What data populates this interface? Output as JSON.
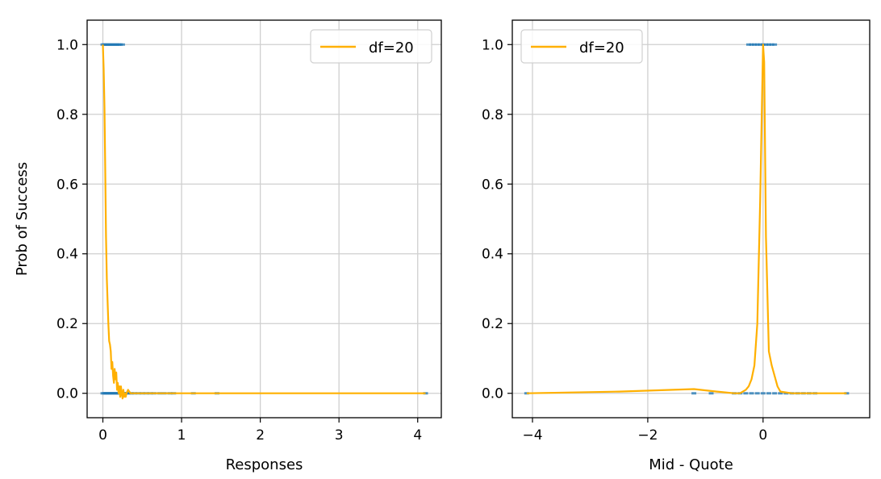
{
  "chart_data": [
    {
      "type": "line",
      "xlabel": "Responses",
      "ylabel": "Prob of Success",
      "xlim": [
        -0.2,
        4.3
      ],
      "ylim": [
        -0.07,
        1.07
      ],
      "xticks": [
        0,
        1,
        2,
        3,
        4
      ],
      "xtick_labels": [
        "0",
        "1",
        "2",
        "3",
        "4"
      ],
      "yticks": [
        0.0,
        0.2,
        0.4,
        0.6,
        0.8,
        1.0
      ],
      "ytick_labels": [
        "0.0",
        "0.2",
        "0.4",
        "0.6",
        "0.8",
        "1.0"
      ],
      "grid": true,
      "legend": {
        "placement": "top-right",
        "entries": [
          "df=20"
        ]
      },
      "colors": {
        "line": "#ffb000",
        "points": "#1f77b4"
      },
      "series": [
        {
          "name": "df=20",
          "x": [
            0.0,
            0.01,
            0.02,
            0.03,
            0.04,
            0.05,
            0.06,
            0.07,
            0.08,
            0.09,
            0.1,
            0.11,
            0.12,
            0.13,
            0.14,
            0.15,
            0.16,
            0.17,
            0.18,
            0.19,
            0.2,
            0.21,
            0.22,
            0.23,
            0.24,
            0.25,
            0.26,
            0.27,
            0.28,
            0.29,
            0.3,
            0.32,
            0.35,
            0.4,
            0.5,
            0.7,
            1.0,
            2.0,
            3.0,
            4.1
          ],
          "y": [
            1.0,
            0.93,
            0.82,
            0.65,
            0.45,
            0.33,
            0.26,
            0.2,
            0.15,
            0.14,
            0.12,
            0.07,
            0.09,
            0.05,
            0.03,
            0.07,
            0.04,
            0.06,
            0.01,
            0.03,
            0.0,
            0.02,
            -0.01,
            0.02,
            0.0,
            -0.015,
            0.01,
            -0.01,
            0.0,
            -0.01,
            0.0,
            0.01,
            0.0,
            0.0,
            0.0,
            0.0,
            0.0,
            0.0,
            0.0,
            0.0
          ]
        },
        {
          "name": "",
          "type": "scatter",
          "x": [
            0.0,
            0.02,
            0.04,
            0.06,
            0.08,
            0.1,
            0.12,
            0.14,
            0.16,
            0.18,
            0.2,
            0.22,
            0.25,
            0.0,
            0.02,
            0.04,
            0.06,
            0.08,
            0.1,
            0.12,
            0.14,
            0.16,
            0.18,
            0.2,
            0.22,
            0.24,
            0.26,
            0.28,
            0.3,
            0.33,
            0.36,
            0.4,
            0.45,
            0.5,
            0.55,
            0.6,
            0.65,
            0.72,
            0.78,
            0.85,
            0.9,
            1.15,
            1.45,
            4.1
          ],
          "y": [
            1,
            1,
            1,
            1,
            1,
            1,
            1,
            1,
            1,
            1,
            1,
            1,
            1,
            0,
            0,
            0,
            0,
            0,
            0,
            0,
            0,
            0,
            0,
            0,
            0,
            0,
            0,
            0,
            0,
            0,
            0,
            0,
            0,
            0,
            0,
            0,
            0,
            0,
            0,
            0,
            0,
            0,
            0,
            0
          ]
        }
      ]
    },
    {
      "type": "line",
      "xlabel": "Mid - Quote",
      "ylabel": "",
      "xlim": [
        -4.35,
        1.85
      ],
      "ylim": [
        -0.07,
        1.07
      ],
      "xticks": [
        -4,
        -2,
        0
      ],
      "xtick_labels": [
        "−4",
        "−2",
        "0"
      ],
      "yticks": [
        0.0,
        0.2,
        0.4,
        0.6,
        0.8,
        1.0
      ],
      "ytick_labels": [
        "0.0",
        "0.2",
        "0.4",
        "0.6",
        "0.8",
        "1.0"
      ],
      "grid": true,
      "legend": {
        "placement": "top-left",
        "entries": [
          "df=20"
        ]
      },
      "colors": {
        "line": "#ffb000",
        "points": "#1f77b4"
      },
      "series": [
        {
          "name": "df=20",
          "x": [
            -4.1,
            -2.5,
            -1.2,
            -0.8,
            -0.5,
            -0.4,
            -0.3,
            -0.25,
            -0.2,
            -0.15,
            -0.1,
            -0.05,
            0.0,
            0.02,
            0.05,
            0.1,
            0.15,
            0.2,
            0.25,
            0.3,
            0.5,
            1.0,
            1.45
          ],
          "y": [
            0.0,
            0.005,
            0.012,
            0.005,
            0.0,
            0.0,
            0.01,
            0.02,
            0.04,
            0.08,
            0.2,
            0.55,
            1.0,
            0.95,
            0.45,
            0.12,
            0.08,
            0.05,
            0.02,
            0.005,
            0.0,
            0.0,
            0.0
          ]
        },
        {
          "name": "",
          "type": "scatter",
          "x": [
            -0.25,
            -0.2,
            -0.15,
            -0.1,
            -0.05,
            0.0,
            0.05,
            0.1,
            0.15,
            0.2,
            -1.2,
            -0.9,
            -0.5,
            -0.4,
            -0.3,
            -0.2,
            -0.1,
            0.0,
            0.1,
            0.2,
            0.3,
            0.4,
            0.5,
            0.6,
            0.7,
            0.8,
            0.9,
            1.45,
            -4.1
          ],
          "y": [
            1,
            1,
            1,
            1,
            1,
            1,
            1,
            1,
            1,
            1,
            0,
            0,
            0,
            0,
            0,
            0,
            0,
            0,
            0,
            0,
            0,
            0,
            0,
            0,
            0,
            0,
            0,
            0,
            0
          ]
        }
      ]
    }
  ]
}
